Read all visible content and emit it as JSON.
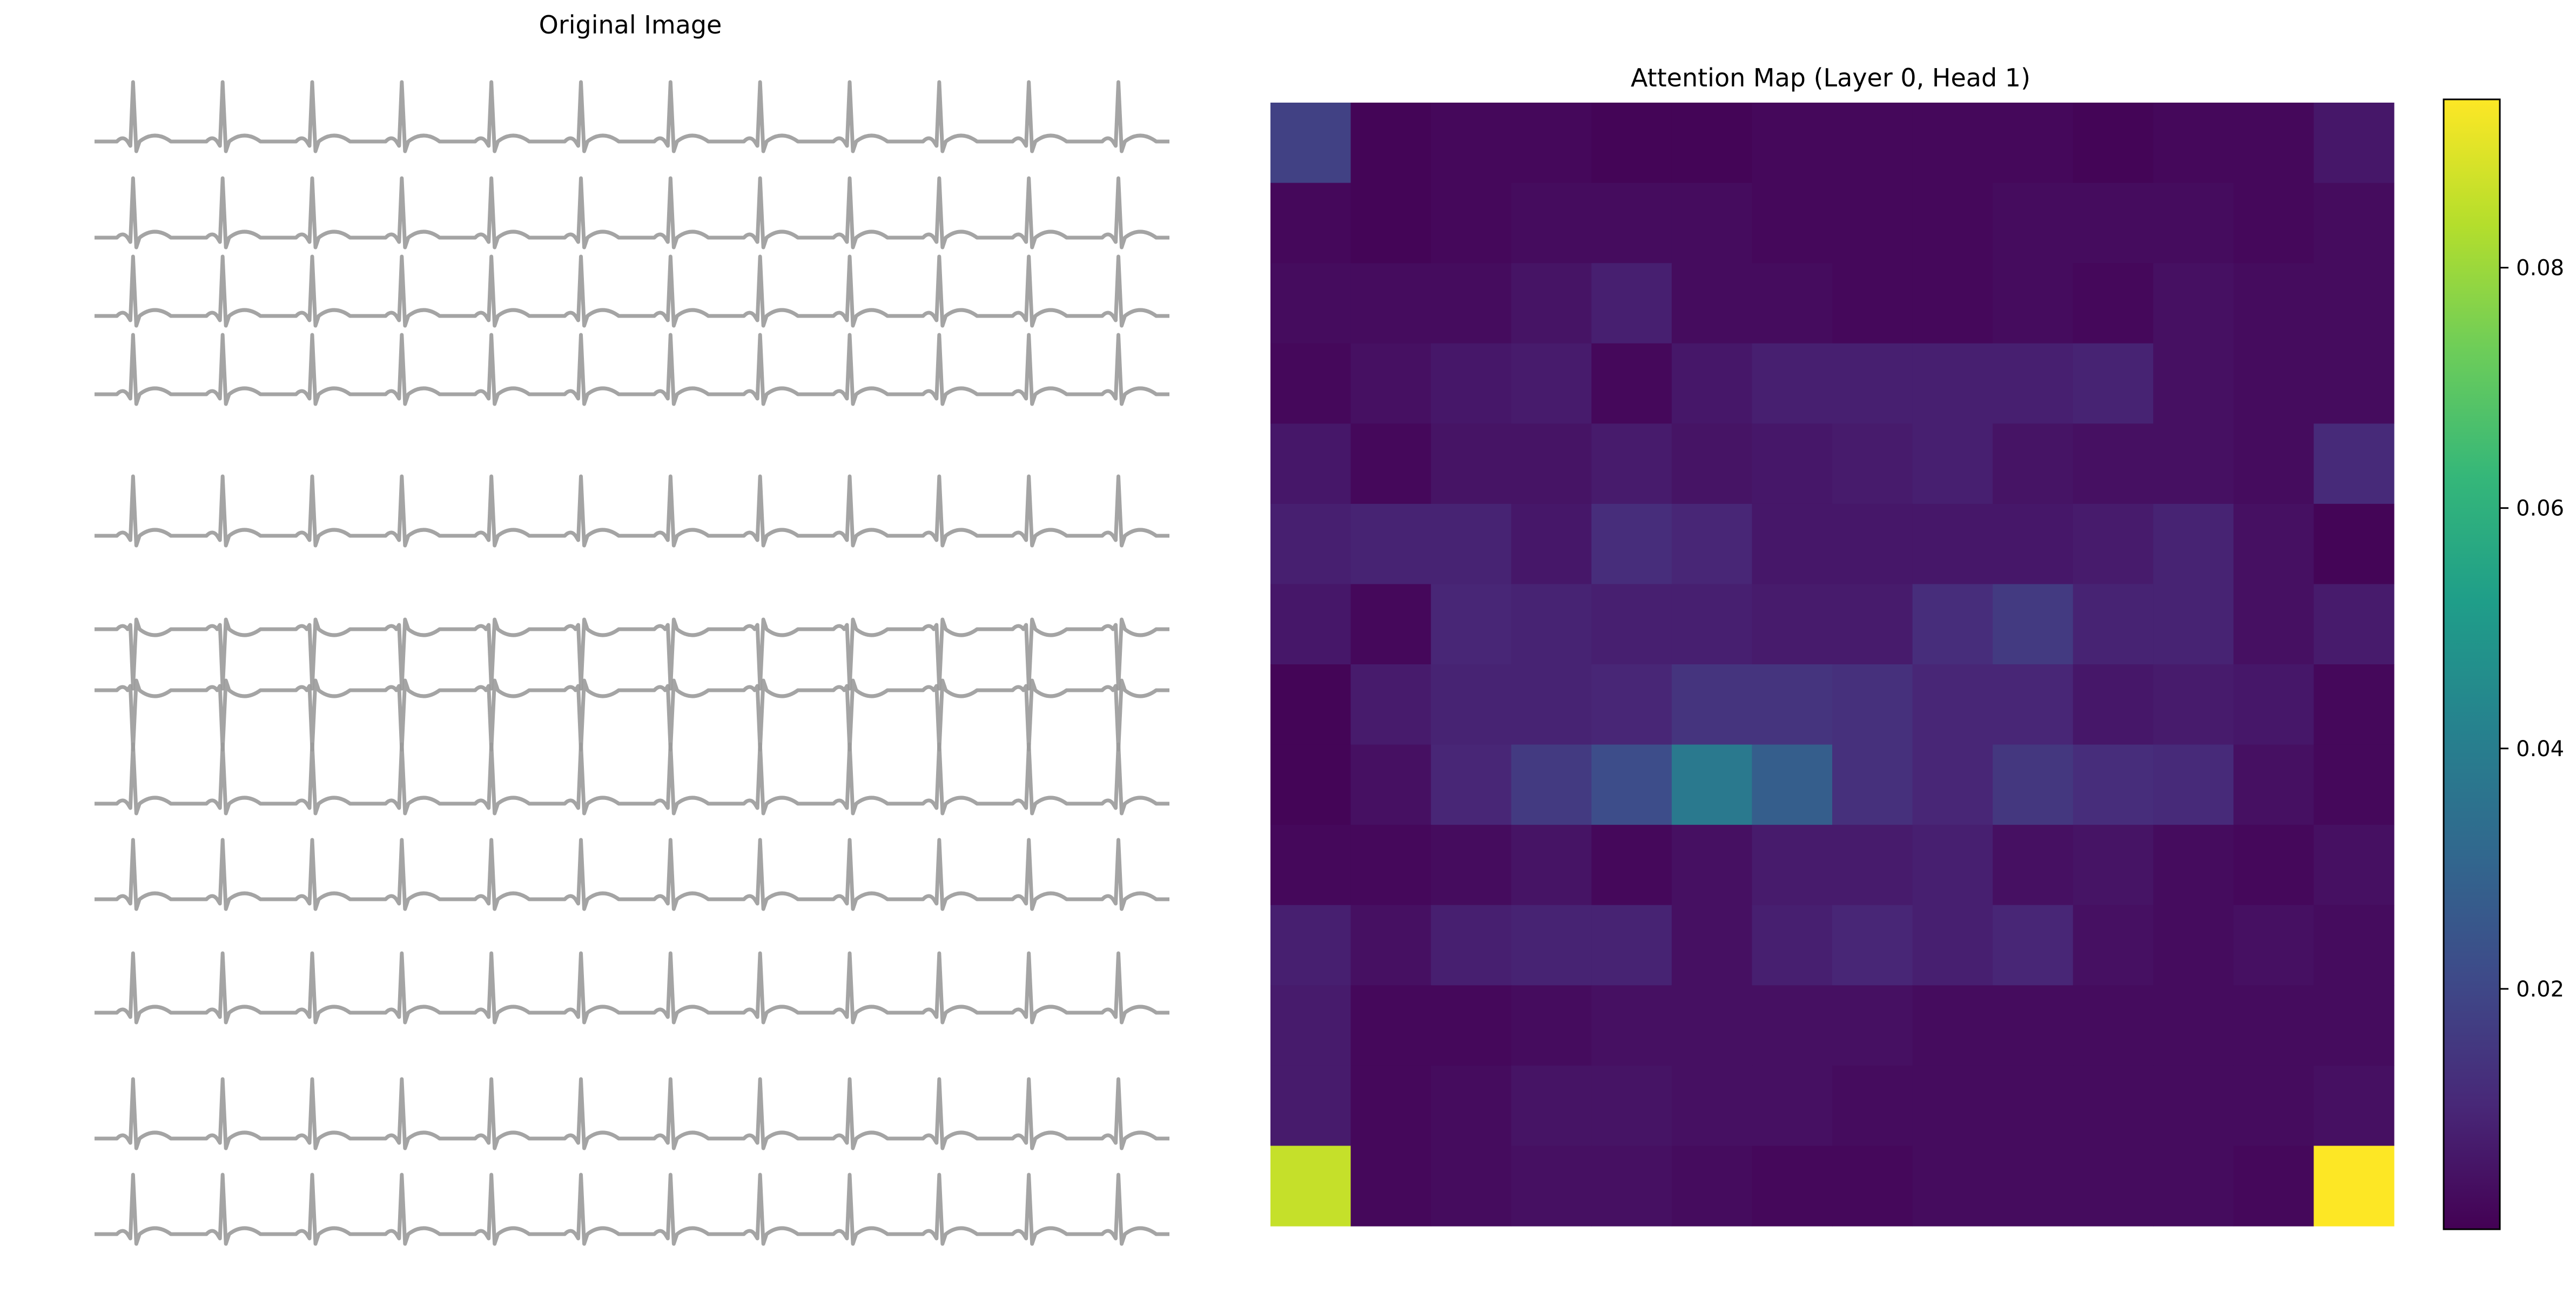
{
  "chart_data": [
    {
      "type": "image",
      "title": "Original Image",
      "lead_count": 12,
      "beats_per_lead": 12,
      "trace_color": "#9a9a9a"
    },
    {
      "type": "heatmap",
      "title": "Attention Map (Layer 0, Head 1)",
      "rows": 14,
      "cols": 14,
      "colormap": "viridis",
      "vmin": 0.0,
      "vmax": 0.094,
      "colorbar": {
        "ticks": [
          0.02,
          0.04,
          0.06,
          0.08
        ],
        "tick_labels": [
          "0.02",
          "0.04",
          "0.06",
          "0.08"
        ],
        "placement": "right"
      },
      "values": [
        [
          0.018,
          0.001,
          0.002,
          0.002,
          0.001,
          0.001,
          0.002,
          0.002,
          0.002,
          0.002,
          0.001,
          0.002,
          0.002,
          0.006
        ],
        [
          0.002,
          0.001,
          0.002,
          0.003,
          0.003,
          0.003,
          0.002,
          0.002,
          0.002,
          0.003,
          0.003,
          0.003,
          0.002,
          0.003
        ],
        [
          0.003,
          0.003,
          0.003,
          0.005,
          0.008,
          0.003,
          0.003,
          0.002,
          0.002,
          0.003,
          0.002,
          0.004,
          0.003,
          0.003
        ],
        [
          0.002,
          0.004,
          0.006,
          0.007,
          0.002,
          0.006,
          0.008,
          0.008,
          0.008,
          0.008,
          0.009,
          0.004,
          0.003,
          0.003
        ],
        [
          0.006,
          0.002,
          0.005,
          0.005,
          0.007,
          0.005,
          0.006,
          0.007,
          0.008,
          0.005,
          0.004,
          0.004,
          0.003,
          0.011
        ],
        [
          0.008,
          0.009,
          0.009,
          0.006,
          0.012,
          0.01,
          0.006,
          0.006,
          0.006,
          0.006,
          0.007,
          0.009,
          0.004,
          0.001
        ],
        [
          0.006,
          0.002,
          0.01,
          0.009,
          0.008,
          0.008,
          0.007,
          0.007,
          0.012,
          0.016,
          0.009,
          0.009,
          0.004,
          0.007
        ],
        [
          0.001,
          0.007,
          0.009,
          0.009,
          0.01,
          0.014,
          0.014,
          0.013,
          0.01,
          0.01,
          0.006,
          0.007,
          0.006,
          0.002
        ],
        [
          0.001,
          0.004,
          0.01,
          0.016,
          0.022,
          0.038,
          0.028,
          0.013,
          0.01,
          0.015,
          0.012,
          0.011,
          0.004,
          0.002
        ],
        [
          0.002,
          0.002,
          0.003,
          0.005,
          0.002,
          0.004,
          0.007,
          0.007,
          0.008,
          0.004,
          0.005,
          0.003,
          0.002,
          0.004
        ],
        [
          0.008,
          0.004,
          0.008,
          0.009,
          0.009,
          0.004,
          0.008,
          0.01,
          0.008,
          0.01,
          0.004,
          0.003,
          0.004,
          0.003
        ],
        [
          0.007,
          0.002,
          0.002,
          0.003,
          0.004,
          0.004,
          0.004,
          0.004,
          0.003,
          0.003,
          0.003,
          0.003,
          0.003,
          0.003
        ],
        [
          0.007,
          0.002,
          0.003,
          0.005,
          0.005,
          0.004,
          0.004,
          0.003,
          0.003,
          0.003,
          0.003,
          0.003,
          0.003,
          0.004
        ],
        [
          0.086,
          0.002,
          0.003,
          0.004,
          0.004,
          0.003,
          0.002,
          0.002,
          0.003,
          0.003,
          0.003,
          0.003,
          0.002,
          0.094
        ]
      ]
    }
  ]
}
